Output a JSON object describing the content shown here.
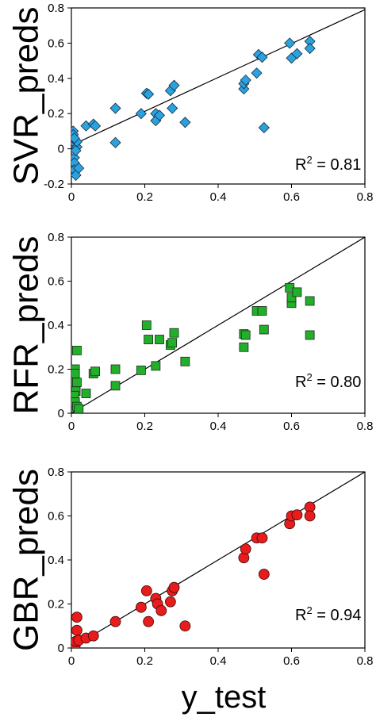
{
  "x_label": "y_test",
  "chart_data": [
    {
      "type": "scatter",
      "ylabel": "SVR_preds",
      "r2": "0.81",
      "xlim": [
        0,
        0.8
      ],
      "ylim": [
        -0.2,
        0.8
      ],
      "xticks": [
        "0",
        "0.2",
        "0.4",
        "0.6",
        "0.8"
      ],
      "yticks": [
        "-0.2",
        "0",
        "0.2",
        "0.4",
        "0.6",
        "0.8"
      ],
      "marker": "diamond",
      "color": "#29a3e0",
      "fit_line": [
        [
          0.0,
          0.02
        ],
        [
          0.8,
          0.79
        ]
      ],
      "points": [
        [
          0.005,
          0.1
        ],
        [
          0.005,
          0.08
        ],
        [
          0.008,
          -0.05
        ],
        [
          0.008,
          -0.08
        ],
        [
          0.008,
          -0.12
        ],
        [
          0.012,
          -0.15
        ],
        [
          0.01,
          0.03
        ],
        [
          0.015,
          0.01
        ],
        [
          0.015,
          0.04
        ],
        [
          0.012,
          -0.01
        ],
        [
          0.02,
          -0.11
        ],
        [
          0.008,
          0.06
        ],
        [
          0.04,
          0.13
        ],
        [
          0.06,
          0.14
        ],
        [
          0.065,
          0.13
        ],
        [
          0.12,
          0.23
        ],
        [
          0.12,
          0.035
        ],
        [
          0.19,
          0.2
        ],
        [
          0.205,
          0.315
        ],
        [
          0.21,
          0.31
        ],
        [
          0.23,
          0.2
        ],
        [
          0.23,
          0.16
        ],
        [
          0.24,
          0.19
        ],
        [
          0.27,
          0.33
        ],
        [
          0.28,
          0.36
        ],
        [
          0.275,
          0.23
        ],
        [
          0.31,
          0.15
        ],
        [
          0.47,
          0.34
        ],
        [
          0.47,
          0.37
        ],
        [
          0.475,
          0.39
        ],
        [
          0.505,
          0.43
        ],
        [
          0.51,
          0.535
        ],
        [
          0.52,
          0.52
        ],
        [
          0.525,
          0.12
        ],
        [
          0.595,
          0.6
        ],
        [
          0.6,
          0.515
        ],
        [
          0.615,
          0.54
        ],
        [
          0.65,
          0.61
        ],
        [
          0.65,
          0.57
        ]
      ]
    },
    {
      "type": "scatter",
      "ylabel": "RFR_preds",
      "r2": "0.80",
      "xlim": [
        0,
        0.8
      ],
      "ylim": [
        0,
        0.8
      ],
      "xticks": [
        "0",
        "0.2",
        "0.4",
        "0.6",
        "0.8"
      ],
      "yticks": [
        "0",
        "0.2",
        "0.4",
        "0.6",
        "0.8"
      ],
      "marker": "square",
      "color": "#22b02a",
      "fit_line": [
        [
          0.0,
          0.0
        ],
        [
          0.8,
          0.8
        ]
      ],
      "points": [
        [
          0.01,
          0.2
        ],
        [
          0.015,
          0.285
        ],
        [
          0.01,
          0.18
        ],
        [
          0.015,
          0.14
        ],
        [
          0.012,
          0.1
        ],
        [
          0.008,
          0.08
        ],
        [
          0.01,
          0.05
        ],
        [
          0.015,
          0.03
        ],
        [
          0.02,
          0.02
        ],
        [
          0.04,
          0.09
        ],
        [
          0.06,
          0.18
        ],
        [
          0.065,
          0.19
        ],
        [
          0.12,
          0.2
        ],
        [
          0.12,
          0.125
        ],
        [
          0.19,
          0.195
        ],
        [
          0.205,
          0.4
        ],
        [
          0.21,
          0.335
        ],
        [
          0.23,
          0.215
        ],
        [
          0.24,
          0.335
        ],
        [
          0.27,
          0.31
        ],
        [
          0.275,
          0.32
        ],
        [
          0.28,
          0.365
        ],
        [
          0.31,
          0.235
        ],
        [
          0.47,
          0.36
        ],
        [
          0.47,
          0.3
        ],
        [
          0.475,
          0.355
        ],
        [
          0.505,
          0.465
        ],
        [
          0.52,
          0.465
        ],
        [
          0.525,
          0.38
        ],
        [
          0.595,
          0.57
        ],
        [
          0.6,
          0.5
        ],
        [
          0.6,
          0.525
        ],
        [
          0.615,
          0.55
        ],
        [
          0.65,
          0.51
        ],
        [
          0.65,
          0.355
        ]
      ]
    },
    {
      "type": "scatter",
      "ylabel": "GBR_preds",
      "r2": "0.94",
      "xlim": [
        0,
        0.8
      ],
      "ylim": [
        0,
        0.8
      ],
      "xticks": [
        "0",
        "0.2",
        "0.4",
        "0.6",
        "0.8"
      ],
      "yticks": [
        "0",
        "0.2",
        "0.4",
        "0.6",
        "0.8"
      ],
      "marker": "circle",
      "color": "#e81c1c",
      "fit_line": [
        [
          0.0,
          0.0
        ],
        [
          0.8,
          0.8
        ]
      ],
      "points": [
        [
          0.01,
          0.01
        ],
        [
          0.012,
          0.03
        ],
        [
          0.015,
          0.14
        ],
        [
          0.015,
          0.08
        ],
        [
          0.02,
          0.035
        ],
        [
          0.04,
          0.045
        ],
        [
          0.06,
          0.055
        ],
        [
          0.12,
          0.12
        ],
        [
          0.19,
          0.185
        ],
        [
          0.205,
          0.26
        ],
        [
          0.21,
          0.12
        ],
        [
          0.23,
          0.225
        ],
        [
          0.235,
          0.2
        ],
        [
          0.245,
          0.17
        ],
        [
          0.27,
          0.21
        ],
        [
          0.275,
          0.26
        ],
        [
          0.28,
          0.275
        ],
        [
          0.31,
          0.1
        ],
        [
          0.47,
          0.41
        ],
        [
          0.475,
          0.45
        ],
        [
          0.505,
          0.5
        ],
        [
          0.52,
          0.5
        ],
        [
          0.525,
          0.335
        ],
        [
          0.595,
          0.565
        ],
        [
          0.6,
          0.6
        ],
        [
          0.615,
          0.605
        ],
        [
          0.65,
          0.64
        ],
        [
          0.65,
          0.6
        ]
      ]
    }
  ]
}
